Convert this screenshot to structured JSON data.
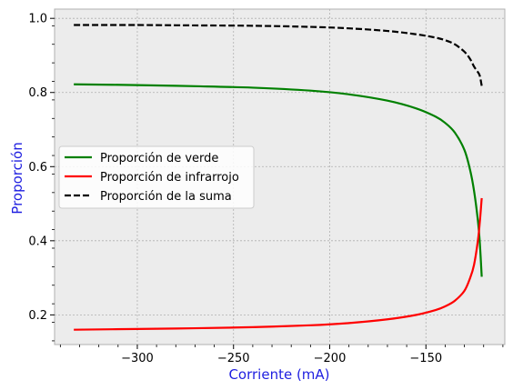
{
  "chart_data": {
    "type": "line",
    "xlabel": "Corriente (mA)",
    "ylabel": "Proporción",
    "xlim": [
      -343,
      -109
    ],
    "ylim": [
      0.12,
      1.025
    ],
    "xticks": [
      -300,
      -250,
      -200,
      -150
    ],
    "yticks": [
      0.2,
      0.4,
      0.6,
      0.8,
      1.0
    ],
    "grid": true,
    "legend_position": "center-left",
    "series": [
      {
        "name": "Proporción de verde",
        "color": "#008000",
        "style": "solid",
        "x": [
          -333,
          -300,
          -270,
          -240,
          -210,
          -190,
          -170,
          -155,
          -145,
          -140,
          -135,
          -130,
          -127,
          -125,
          -123,
          -122,
          -121
        ],
        "y": [
          0.822,
          0.82,
          0.817,
          0.813,
          0.805,
          0.795,
          0.778,
          0.757,
          0.735,
          0.718,
          0.692,
          0.645,
          0.59,
          0.535,
          0.455,
          0.395,
          0.303
        ]
      },
      {
        "name": "Proporción de infrarrojo",
        "color": "#ff0000",
        "style": "solid",
        "x": [
          -333,
          -300,
          -270,
          -240,
          -210,
          -190,
          -170,
          -155,
          -145,
          -140,
          -135,
          -130,
          -127,
          -125,
          -123,
          -122,
          -121
        ],
        "y": [
          0.16,
          0.162,
          0.164,
          0.167,
          0.172,
          0.178,
          0.188,
          0.2,
          0.213,
          0.223,
          0.238,
          0.265,
          0.3,
          0.335,
          0.4,
          0.45,
          0.515
        ]
      },
      {
        "name": "Proporción de la suma",
        "color": "#000000",
        "style": "dashed",
        "x": [
          -333,
          -300,
          -270,
          -240,
          -210,
          -190,
          -170,
          -155,
          -145,
          -140,
          -135,
          -130,
          -127,
          -125,
          -123,
          -122,
          -121
        ],
        "y": [
          0.982,
          0.982,
          0.981,
          0.98,
          0.977,
          0.973,
          0.966,
          0.957,
          0.948,
          0.941,
          0.93,
          0.91,
          0.89,
          0.87,
          0.855,
          0.845,
          0.818
        ]
      }
    ]
  }
}
